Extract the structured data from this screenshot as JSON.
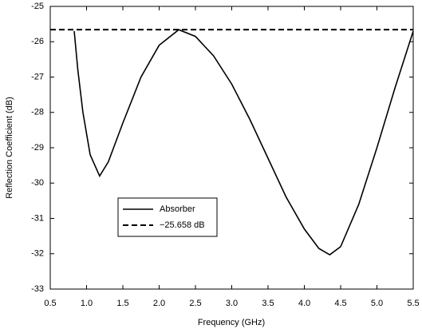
{
  "chart_data": {
    "type": "line",
    "xlabel": "Frequency (GHz)",
    "ylabel": "Reflection Coefficient (dB)",
    "xlim": [
      0.5,
      5.5
    ],
    "xticks": [
      0.5,
      {
        "value": 1,
        "label": "1.0"
      },
      1.5,
      {
        "value": 2,
        "label": "2.0"
      },
      2.5,
      {
        "value": 3,
        "label": "3.0"
      },
      3.5,
      {
        "value": 4,
        "label": "4.0"
      },
      4.5,
      {
        "value": 5,
        "label": "5.0"
      },
      5.5
    ],
    "ylim": [
      -33,
      -25
    ],
    "yticks": [
      -25,
      -26,
      -27,
      -28,
      -29,
      -30,
      -31,
      -32,
      -33
    ],
    "legend": "center-left",
    "series": [
      {
        "name": "Absorber",
        "color": "#000000",
        "dash": "solid",
        "x": [
          0.83,
          0.88,
          0.95,
          1.05,
          1.18,
          1.3,
          1.5,
          1.75,
          2.0,
          2.27,
          2.5,
          2.75,
          3.0,
          3.25,
          3.5,
          3.75,
          4.0,
          4.2,
          4.35,
          4.5,
          4.75,
          5.0,
          5.25,
          5.5
        ],
        "values": [
          -25.7,
          -26.8,
          -28.0,
          -29.2,
          -29.8,
          -29.4,
          -28.3,
          -27.0,
          -26.1,
          -25.66,
          -25.85,
          -26.4,
          -27.2,
          -28.2,
          -29.3,
          -30.4,
          -31.3,
          -31.85,
          -32.03,
          -31.8,
          -30.6,
          -29.0,
          -27.3,
          -25.7
        ]
      },
      {
        "name": "−25.658 dB",
        "color": "#000000",
        "dash": "dashed",
        "x": [
          0.5,
          5.5
        ],
        "values": [
          -25.658,
          -25.658
        ]
      }
    ]
  }
}
